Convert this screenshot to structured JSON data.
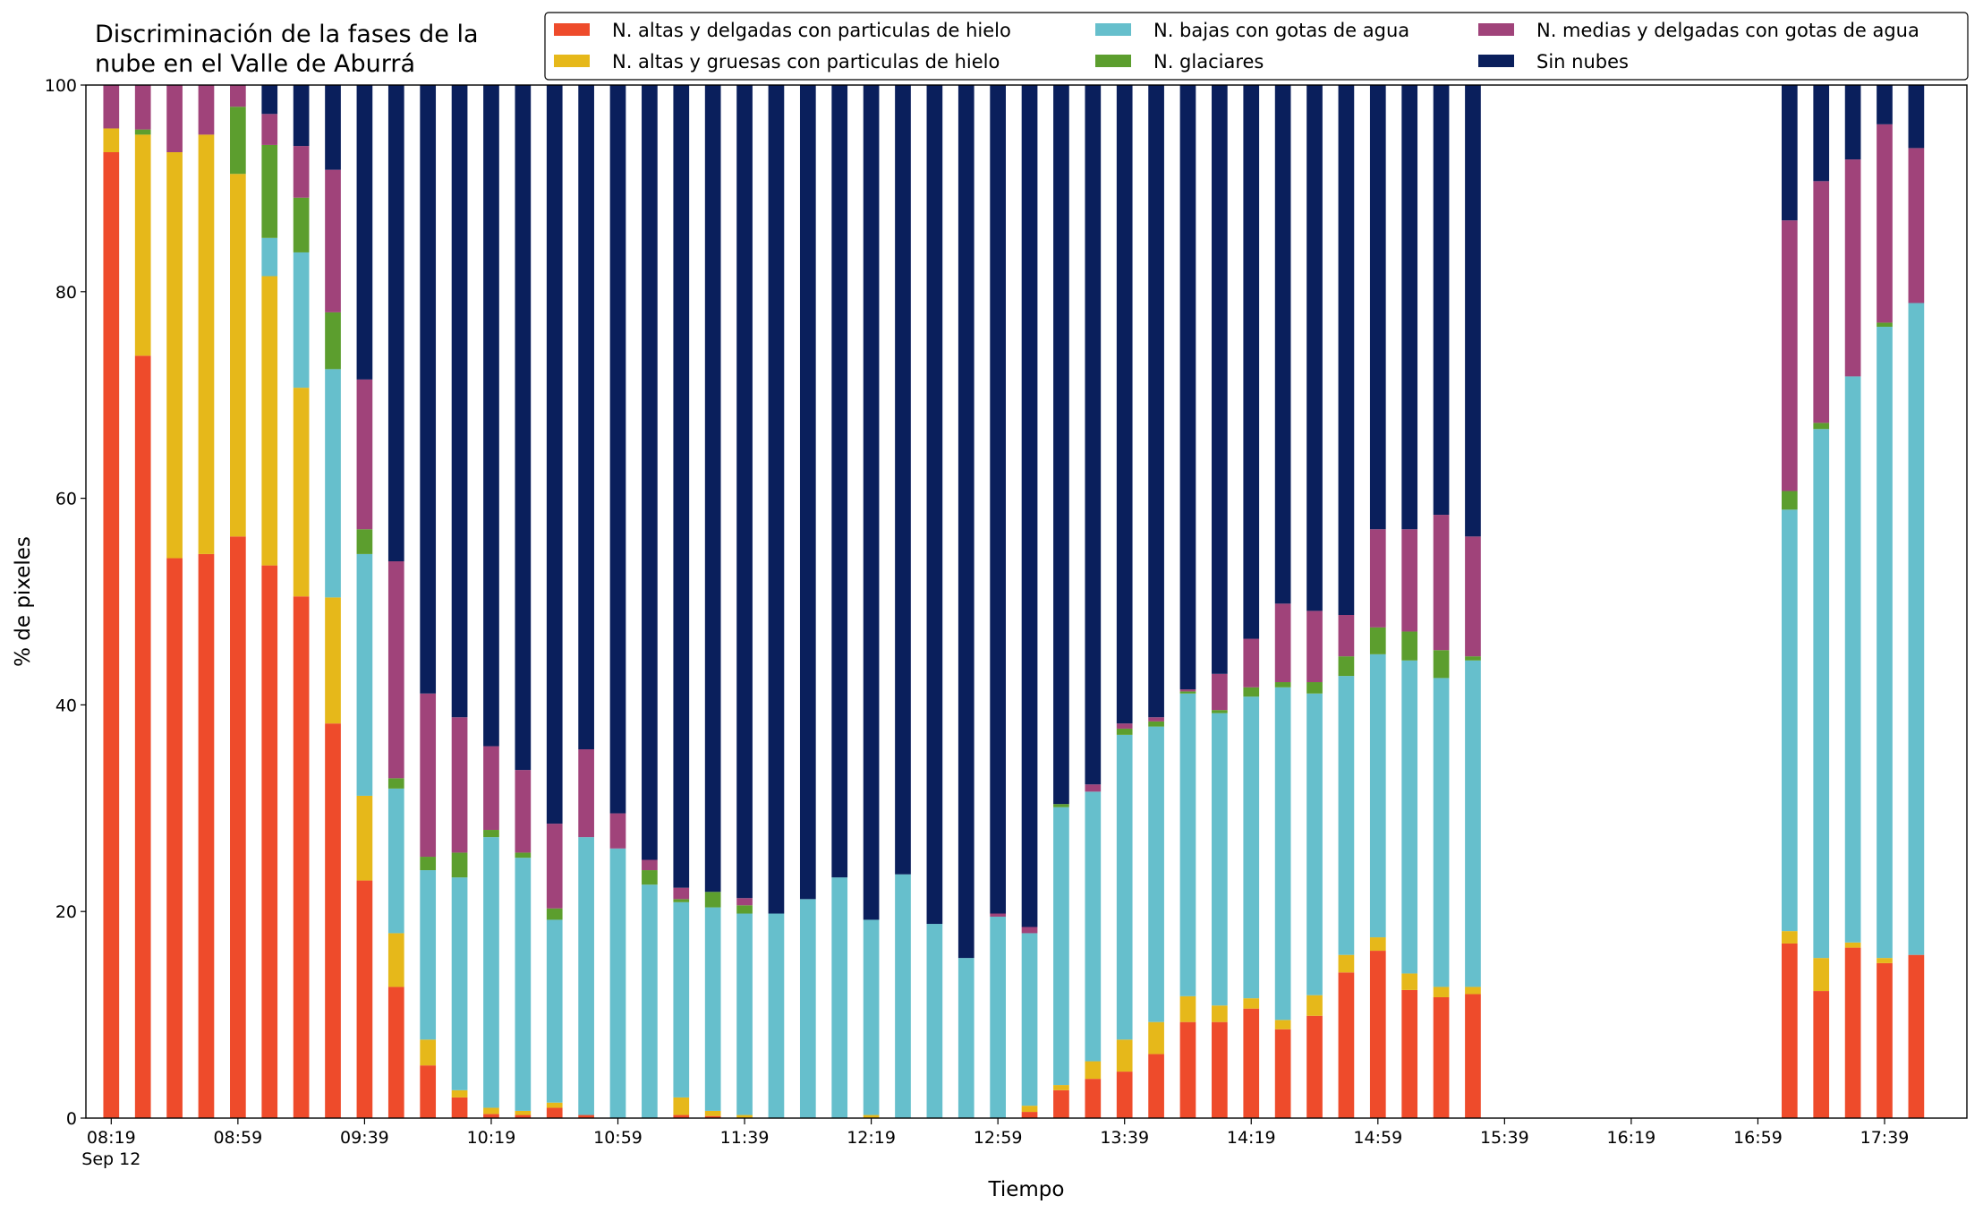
{
  "chart_data": {
    "type": "stacked_bar",
    "title": "Discriminación de la fases de la\nnube en el Valle de Aburrá",
    "xlabel": "Tiempo",
    "ylabel": "% de pixeles",
    "x": [
      "08:19",
      "08:29",
      "08:39",
      "08:49",
      "08:59",
      "09:09",
      "09:19",
      "09:29",
      "09:39",
      "09:49",
      "09:59",
      "10:09",
      "10:19",
      "10:29",
      "10:39",
      "10:49",
      "10:59",
      "11:09",
      "11:19",
      "11:29",
      "11:39",
      "11:49",
      "11:59",
      "12:09",
      "12:19",
      "12:29",
      "12:39",
      "12:49",
      "12:59",
      "13:09",
      "13:19",
      "13:29",
      "13:39",
      "13:49",
      "13:59",
      "14:09",
      "14:19",
      "14:29",
      "14:39",
      "14:49",
      "14:59",
      "15:09",
      "15:19",
      "15:29",
      "17:09",
      "17:19",
      "17:29",
      "17:39",
      "17:49"
    ],
    "x_date": "Sep 12",
    "xlim": [
      "08:11",
      "18:05"
    ],
    "xticks": [
      "08:19",
      "08:59",
      "09:39",
      "10:19",
      "10:59",
      "11:39",
      "12:19",
      "12:59",
      "13:39",
      "14:19",
      "14:59",
      "15:39",
      "16:19",
      "16:59",
      "17:39"
    ],
    "ylim": [
      0,
      100
    ],
    "yticks": [
      0,
      20,
      40,
      60,
      80,
      100
    ],
    "legend": "upper right",
    "series": [
      {
        "name": "N. altas y delgadas con particulas de hielo",
        "color": "#ee4b2b",
        "values": [
          93.5,
          73.8,
          54.2,
          54.6,
          56.3,
          53.5,
          50.5,
          38.2,
          23,
          12.7,
          5.1,
          2,
          0.4,
          0.3,
          1,
          0.3,
          0,
          0,
          0.3,
          0.2,
          0,
          0,
          0,
          0,
          0,
          0,
          0,
          0,
          0,
          0.6,
          2.7,
          3.8,
          4.5,
          6.2,
          9.3,
          9.3,
          10.6,
          8.6,
          9.9,
          14.1,
          16.2,
          12.4,
          11.7,
          12,
          16.9,
          12.3,
          16.5,
          15,
          15.8
        ]
      },
      {
        "name": "N. altas y gruesas con particulas de hielo",
        "color": "#e6b81a",
        "values": [
          2.3,
          21.4,
          39.3,
          40.6,
          35.1,
          28,
          20.2,
          12.2,
          8.2,
          5.2,
          2.5,
          0.7,
          0.6,
          0.4,
          0.5,
          0,
          0,
          0,
          1.7,
          0.5,
          0.3,
          0,
          0,
          0,
          0.3,
          0,
          0,
          0,
          0,
          0.6,
          0.5,
          1.7,
          3.1,
          3.1,
          2.5,
          1.6,
          1,
          0.9,
          2,
          1.7,
          1.3,
          1.6,
          1,
          0.7,
          1.2,
          3.2,
          0.5,
          0.5,
          0
        ]
      },
      {
        "name": "N. bajas con gotas de agua",
        "color": "#66bfcc",
        "values": [
          0,
          0,
          0,
          0,
          0,
          3.7,
          13.1,
          22.1,
          23.4,
          14,
          16.4,
          20.6,
          26.2,
          24.5,
          17.7,
          26.9,
          26.1,
          22.6,
          18.9,
          19.7,
          19.5,
          19.8,
          21.2,
          23.3,
          18.9,
          23.6,
          18.8,
          15.5,
          19.5,
          16.7,
          26.9,
          26.1,
          29.5,
          28.6,
          29.3,
          28.3,
          29.2,
          32.2,
          29.2,
          27,
          27.4,
          30.3,
          29.9,
          31.6,
          40.8,
          51.2,
          54.8,
          61.1,
          63.1
        ]
      },
      {
        "name": "N. glaciares",
        "color": "#5c9e2e",
        "values": [
          0,
          0.5,
          0,
          0,
          6.5,
          9,
          5.3,
          5.5,
          2.4,
          1,
          1.3,
          2.4,
          0.7,
          0.5,
          1.1,
          0,
          0,
          1.4,
          0.3,
          1.5,
          0.8,
          0,
          0,
          0,
          0,
          0,
          0,
          0,
          0,
          0,
          0.3,
          0,
          0.6,
          0.5,
          0.2,
          0.3,
          0.9,
          0.5,
          1.1,
          1.9,
          2.6,
          2.8,
          2.7,
          0.4,
          1.8,
          0.6,
          0,
          0.4,
          0
        ]
      },
      {
        "name": "N. medias y delgadas con gotas de agua",
        "color": "#a0437a",
        "values": [
          4.2,
          4.3,
          6.5,
          4.8,
          2.1,
          3,
          5,
          13.8,
          14.5,
          21,
          15.8,
          13.1,
          8.1,
          8,
          8.2,
          8.5,
          3.4,
          1,
          1.1,
          0,
          0.7,
          0,
          0,
          0,
          0,
          0,
          0,
          0,
          0.3,
          0.6,
          0,
          0.7,
          0.5,
          0.4,
          0.2,
          3.5,
          4.7,
          7.6,
          6.9,
          4,
          9.5,
          9.9,
          13.1,
          11.6,
          26.2,
          23.4,
          21,
          19.2,
          15
        ]
      },
      {
        "name": "Sin nubes",
        "color": "#0a1f5c",
        "values": [
          0,
          0,
          0,
          0,
          0,
          2.8,
          5.9,
          8.2,
          28.5,
          46.1,
          58.9,
          61.2,
          64,
          66.3,
          71.5,
          64.3,
          70.5,
          75,
          77.7,
          78.1,
          78.7,
          80.2,
          78.8,
          76.7,
          80.8,
          76.4,
          81.2,
          84.5,
          80.2,
          81.5,
          69.6,
          67.7,
          61.8,
          61.2,
          58.5,
          57,
          53.6,
          50.2,
          50.9,
          51.3,
          43,
          43,
          41.6,
          43.7,
          13.1,
          9.3,
          7.2,
          3.8,
          6.1
        ]
      }
    ]
  }
}
